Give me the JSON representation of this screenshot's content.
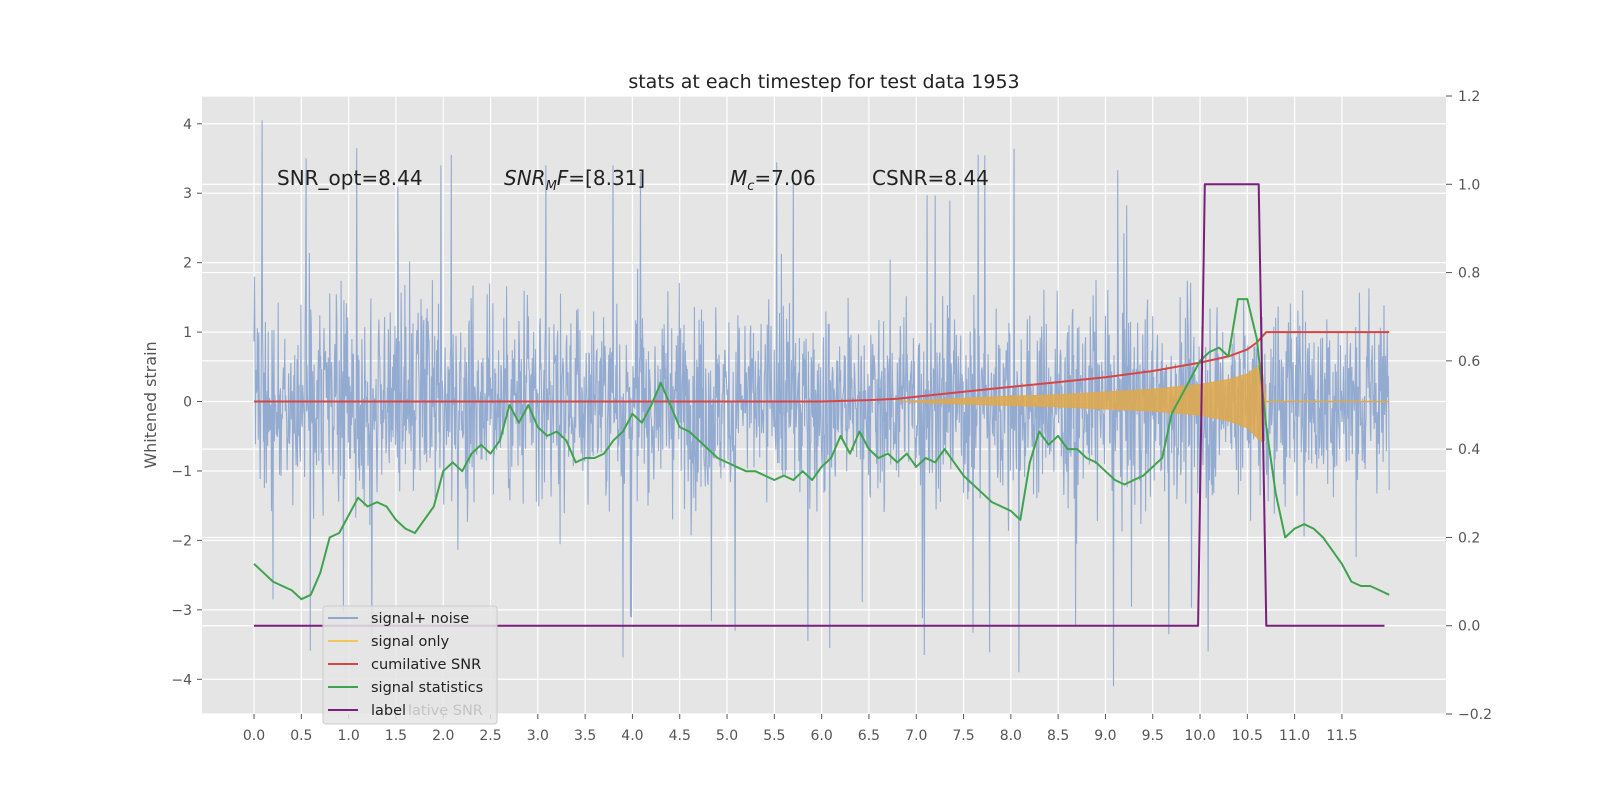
{
  "chart_data": {
    "type": "line",
    "title": "stats at each timestep for test data 1953",
    "ylabel": "Whitened strain",
    "xlim": [
      -0.55,
      12.6
    ],
    "ylim": [
      -4.5,
      4.4
    ],
    "y2lim": [
      -0.2,
      1.2
    ],
    "grid": true,
    "x_ticks": [
      0.0,
      0.5,
      1.0,
      1.5,
      2.0,
      2.5,
      3.0,
      3.5,
      4.0,
      4.5,
      5.0,
      5.5,
      6.0,
      6.5,
      7.0,
      7.5,
      8.0,
      8.5,
      9.0,
      9.5,
      10.0,
      10.5,
      11.0,
      11.5
    ],
    "x_tick_labels": [
      "0.0",
      "0.5",
      "1.0",
      "1.5",
      "2.0",
      "2.5",
      "3.0",
      "3.5",
      "4.0",
      "4.5",
      "5.0",
      "5.5",
      "6.0",
      "6.5",
      "7.0",
      "7.5",
      "8.0",
      "8.5",
      "9.0",
      "9.5",
      "10.0",
      "10.5",
      "11.0",
      "11.5"
    ],
    "y_ticks": [
      -4,
      -3,
      -2,
      -1,
      0,
      1,
      2,
      3,
      4
    ],
    "y_tick_labels": [
      "−4",
      "−3",
      "−2",
      "−1",
      "0",
      "1",
      "2",
      "3",
      "4"
    ],
    "y2_ticks": [
      -0.2,
      0.0,
      0.2,
      0.4,
      0.6,
      0.8,
      1.0,
      1.2
    ],
    "y2_tick_labels": [
      "−0.2",
      "0.0",
      "0.2",
      "0.4",
      "0.6",
      "0.8",
      "1.0",
      "1.2"
    ],
    "annotations": [
      {
        "name": "snr-opt",
        "text": "SNR_opt=8.44",
        "x": 0.2,
        "y": 3.25
      },
      {
        "name": "snr-mf",
        "text": "=[8.31]",
        "x": 2.6,
        "y": 3.25
      },
      {
        "name": "chirp-mass",
        "text": "=7.06",
        "x": 5.0,
        "y": 3.25
      },
      {
        "name": "csnr",
        "text": "CSNR=8.44",
        "x": 6.5,
        "y": 3.25
      }
    ],
    "legend": {
      "placement": "lower-left",
      "entries": [
        {
          "label": "signal+ noise",
          "color": "#8fa8d0"
        },
        {
          "label": "signal only",
          "color": "#f0c75a"
        },
        {
          "label": "cumilative SNR",
          "color": "#d64545"
        },
        {
          "label": "signal statistics",
          "color": "#3fa34d"
        },
        {
          "label": "label",
          "color": "#7a1f7a"
        }
      ],
      "obscured_text": "lative SNR"
    },
    "series": [
      {
        "name": "signal+ noise",
        "axis": "left",
        "color": "#8fa8d0",
        "x_range": [
          0.0,
          12.0
        ],
        "band_low": -1.5,
        "band_high": 1.5,
        "peak_values": [
          4.05,
          3.65,
          3.55,
          3.4,
          3.3,
          -3.3,
          -3.55,
          -3.65,
          -3.9,
          -4.1,
          -3.6,
          1.6
        ]
      },
      {
        "name": "signal only",
        "axis": "left",
        "color": "#e0a84a",
        "x": [
          6.8,
          7.5,
          8.0,
          8.5,
          9.0,
          9.5,
          10.0,
          10.3,
          10.5,
          10.6,
          10.65,
          10.7,
          12.0
        ],
        "upper": [
          0.0,
          0.05,
          0.08,
          0.1,
          0.14,
          0.18,
          0.25,
          0.32,
          0.4,
          0.5,
          0.55,
          0.0,
          0.0
        ],
        "lower": [
          0.0,
          -0.04,
          -0.06,
          -0.08,
          -0.11,
          -0.14,
          -0.2,
          -0.28,
          -0.38,
          -0.52,
          -0.58,
          0.0,
          0.0
        ]
      },
      {
        "name": "cumilative SNR",
        "axis": "left",
        "color": "#d64545",
        "x": [
          0.0,
          6.0,
          6.5,
          6.8,
          7.0,
          7.5,
          8.0,
          8.5,
          9.0,
          9.5,
          10.0,
          10.3,
          10.5,
          10.6,
          10.7,
          12.0
        ],
        "values": [
          0.0,
          0.0,
          0.02,
          0.04,
          0.07,
          0.14,
          0.21,
          0.28,
          0.35,
          0.44,
          0.56,
          0.65,
          0.75,
          0.85,
          1.0,
          1.0
        ]
      },
      {
        "name": "signal statistics",
        "axis": "right",
        "color": "#3fa34d",
        "x": [
          0.0,
          0.1,
          0.2,
          0.3,
          0.4,
          0.5,
          0.6,
          0.7,
          0.8,
          0.9,
          1.0,
          1.1,
          1.2,
          1.3,
          1.4,
          1.5,
          1.6,
          1.7,
          1.8,
          1.9,
          2.0,
          2.1,
          2.2,
          2.3,
          2.4,
          2.5,
          2.6,
          2.7,
          2.8,
          2.9,
          3.0,
          3.1,
          3.2,
          3.3,
          3.4,
          3.5,
          3.6,
          3.7,
          3.8,
          3.9,
          4.0,
          4.1,
          4.2,
          4.3,
          4.4,
          4.5,
          4.6,
          4.7,
          4.8,
          4.9,
          5.0,
          5.1,
          5.2,
          5.3,
          5.4,
          5.5,
          5.6,
          5.7,
          5.8,
          5.9,
          6.0,
          6.1,
          6.2,
          6.3,
          6.4,
          6.5,
          6.6,
          6.7,
          6.8,
          6.9,
          7.0,
          7.1,
          7.2,
          7.3,
          7.4,
          7.5,
          7.6,
          7.7,
          7.8,
          7.9,
          8.0,
          8.1,
          8.2,
          8.3,
          8.4,
          8.5,
          8.6,
          8.7,
          8.8,
          8.9,
          9.0,
          9.1,
          9.2,
          9.3,
          9.4,
          9.5,
          9.6,
          9.7,
          9.8,
          9.9,
          10.0,
          10.1,
          10.2,
          10.3,
          10.4,
          10.5,
          10.6,
          10.7,
          10.8,
          10.9,
          11.0,
          11.1,
          11.2,
          11.3,
          11.4,
          11.5,
          11.6,
          11.7,
          11.8,
          11.9,
          12.0
        ],
        "values": [
          0.14,
          0.12,
          0.1,
          0.09,
          0.08,
          0.06,
          0.07,
          0.12,
          0.2,
          0.21,
          0.25,
          0.29,
          0.27,
          0.28,
          0.27,
          0.24,
          0.22,
          0.21,
          0.24,
          0.27,
          0.35,
          0.37,
          0.35,
          0.39,
          0.41,
          0.39,
          0.42,
          0.5,
          0.46,
          0.5,
          0.45,
          0.43,
          0.44,
          0.42,
          0.37,
          0.38,
          0.38,
          0.39,
          0.42,
          0.44,
          0.48,
          0.46,
          0.5,
          0.55,
          0.5,
          0.45,
          0.44,
          0.42,
          0.4,
          0.38,
          0.37,
          0.36,
          0.35,
          0.35,
          0.34,
          0.33,
          0.34,
          0.33,
          0.35,
          0.33,
          0.36,
          0.38,
          0.43,
          0.39,
          0.44,
          0.4,
          0.38,
          0.39,
          0.37,
          0.39,
          0.36,
          0.38,
          0.37,
          0.4,
          0.37,
          0.34,
          0.32,
          0.3,
          0.28,
          0.27,
          0.26,
          0.24,
          0.37,
          0.44,
          0.41,
          0.43,
          0.4,
          0.4,
          0.38,
          0.37,
          0.35,
          0.33,
          0.32,
          0.33,
          0.34,
          0.36,
          0.38,
          0.48,
          0.52,
          0.56,
          0.6,
          0.62,
          0.63,
          0.61,
          0.74,
          0.74,
          0.65,
          0.45,
          0.3,
          0.2,
          0.22,
          0.23,
          0.22,
          0.2,
          0.17,
          0.14,
          0.1,
          0.09,
          0.09,
          0.08,
          0.07
        ]
      },
      {
        "name": "label",
        "axis": "right",
        "color": "#7a1f7a",
        "x": [
          0.0,
          9.98,
          10.05,
          10.62,
          10.7,
          11.95
        ],
        "values": [
          0.0,
          0.0,
          1.0,
          1.0,
          0.0,
          0.0
        ]
      }
    ]
  }
}
